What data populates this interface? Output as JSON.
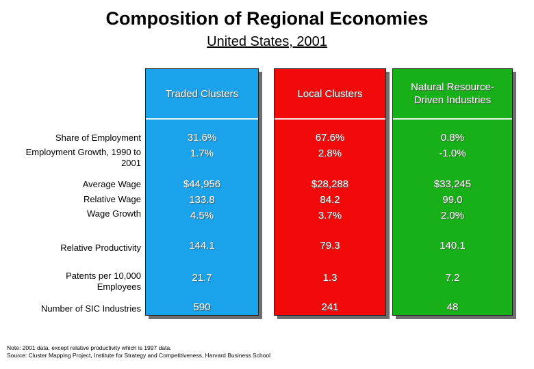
{
  "title": "Composition of Regional Economies",
  "subtitle": "United States, 2001",
  "columns": [
    {
      "header_line1": "Traded Clusters",
      "header_line2": "",
      "color": "#1aa3ea"
    },
    {
      "header_line1": "Local Clusters",
      "header_line2": "",
      "color": "#f20a0a"
    },
    {
      "header_line1": "Natural Resource-",
      "header_line2": "Driven Industries",
      "color": "#18b018"
    }
  ],
  "rows": {
    "share_of_employment": {
      "label": "Share of Employment",
      "values": [
        "31.6%",
        "67.6%",
        "0.8%"
      ]
    },
    "employment_growth": {
      "label_line1": "Employment Growth, 1990 to",
      "label_line2": "2001",
      "values": [
        "1.7%",
        "2.8%",
        "-1.0%"
      ]
    },
    "average_wage": {
      "label": "Average Wage",
      "values": [
        "$44,956",
        "$28,288",
        "$33,245"
      ]
    },
    "relative_wage": {
      "label": "Relative Wage",
      "values": [
        "133.8",
        "84.2",
        "99.0"
      ]
    },
    "wage_growth": {
      "label": "Wage Growth",
      "values": [
        "4.5%",
        "3.7%",
        "2.0%"
      ]
    },
    "relative_productivity": {
      "label": "Relative Productivity",
      "values": [
        "144.1",
        "79.3",
        "140.1"
      ]
    },
    "patents": {
      "label_line1": "Patents per 10,000",
      "label_line2": "Employees",
      "values": [
        "21.7",
        "1.3",
        "7.2"
      ]
    },
    "sic_industries": {
      "label": "Number of SIC Industries",
      "values": [
        "590",
        "241",
        "48"
      ]
    }
  },
  "note_line1": "Note:  2001 data, except relative productivity which is 1997 data.",
  "note_line2": "Source:  Cluster Mapping Project, Institute for Strategy and Competitiveness, Harvard Business School"
}
